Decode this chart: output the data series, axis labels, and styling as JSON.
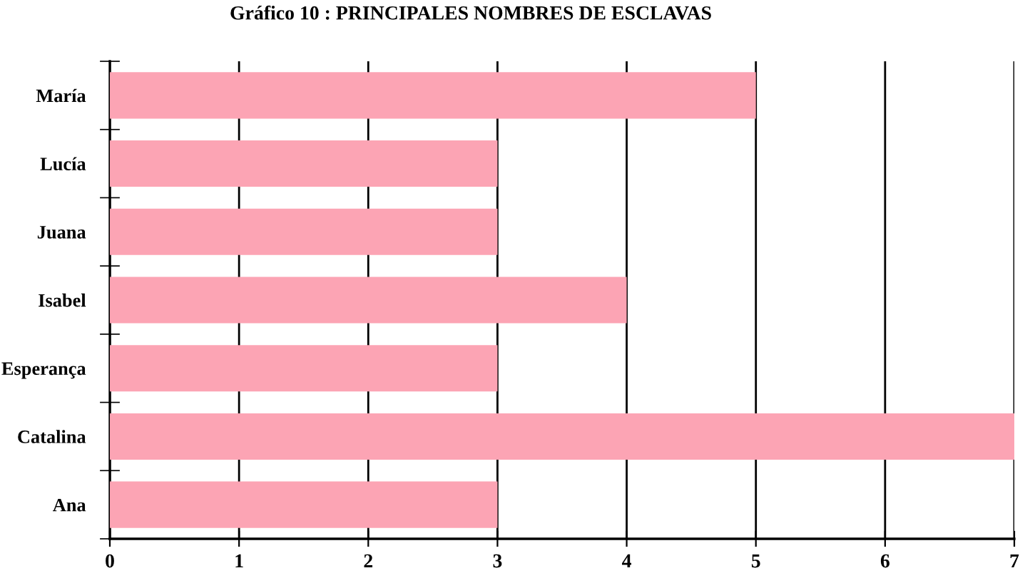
{
  "chart_data": {
    "type": "bar",
    "orientation": "horizontal",
    "title": "Gráfico 10 : PRINCIPALES NOMBRES DE ESCLAVAS",
    "categories": [
      "María",
      "Lucía",
      "Juana",
      "Isabel",
      "Esperança",
      "Catalina",
      "Ana"
    ],
    "values": [
      5,
      3,
      3,
      4,
      3,
      7,
      3
    ],
    "color": "#fca4b4",
    "xlim": [
      0,
      7
    ],
    "xticks": [
      0,
      1,
      2,
      3,
      4,
      5,
      6,
      7
    ],
    "grid": "x",
    "legend": false
  }
}
